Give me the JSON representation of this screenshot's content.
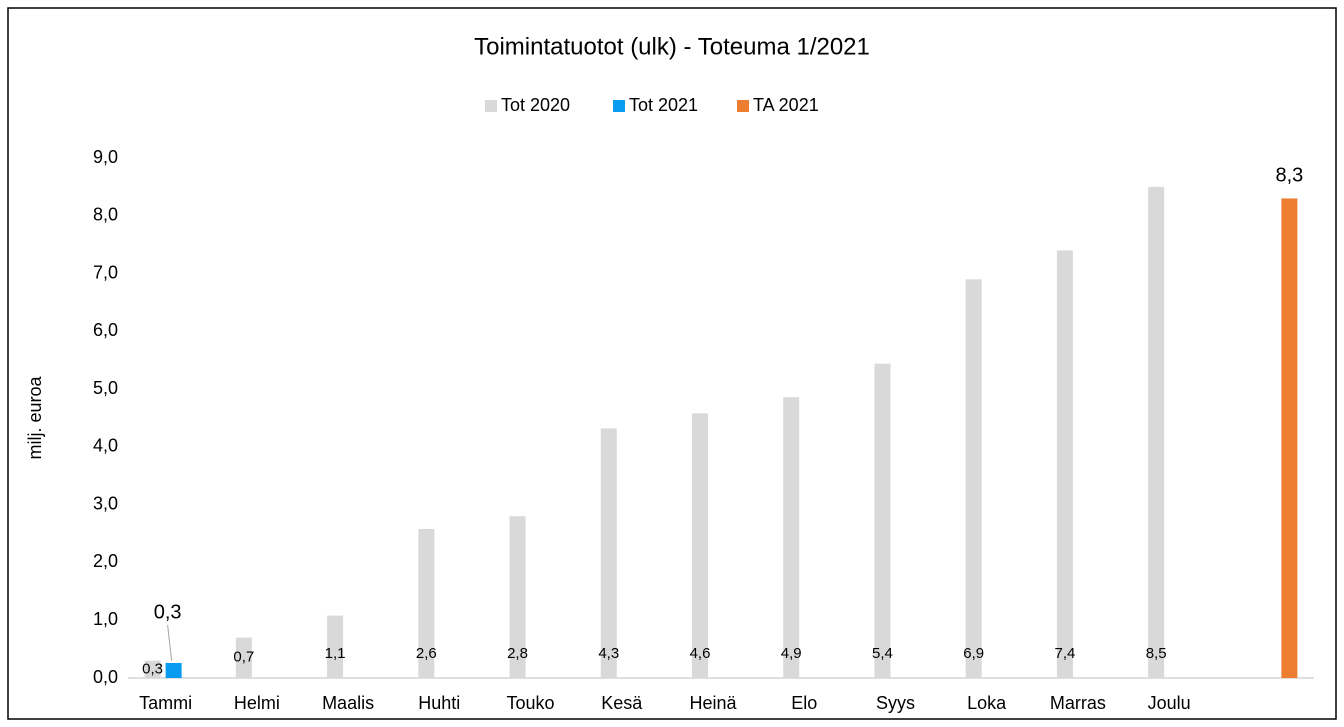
{
  "chart_data": {
    "type": "bar",
    "title": "Toimintatuotot (ulk) - Toteuma 1/2021",
    "y_axis_label": "milj. euroa",
    "categories": [
      "Tammi",
      "Helmi",
      "Maalis",
      "Huhti",
      "Touko",
      "Kesä",
      "Heinä",
      "Elo",
      "Syys",
      "Loka",
      "Marras",
      "Joulu",
      null
    ],
    "series": [
      {
        "name": "Tot 2020",
        "color": "#d9d9d9",
        "values": [
          0.3,
          0.7,
          1.08,
          2.58,
          2.8,
          4.32,
          4.58,
          4.86,
          5.44,
          6.9,
          7.4,
          8.5,
          null
        ],
        "value_labels": [
          "0,3",
          "0,7",
          "1,1",
          "2,6",
          "2,8",
          "4,3",
          "4,6",
          "4,9",
          "5,4",
          "6,9",
          "7,4",
          "8,5",
          null
        ]
      },
      {
        "name": "Tot 2021",
        "color": "#0a9cf0",
        "values": [
          0.26,
          null,
          null,
          null,
          null,
          null,
          null,
          null,
          null,
          null,
          null,
          null,
          null
        ],
        "value_labels": [
          "0,3",
          null,
          null,
          null,
          null,
          null,
          null,
          null,
          null,
          null,
          null,
          null,
          null
        ]
      },
      {
        "name": "TA 2021",
        "color": "#ed7d31",
        "values": [
          null,
          null,
          null,
          null,
          null,
          null,
          null,
          null,
          null,
          null,
          null,
          null,
          8.3
        ],
        "value_labels": [
          null,
          null,
          null,
          null,
          null,
          null,
          null,
          null,
          null,
          null,
          null,
          null,
          "8,3"
        ]
      }
    ],
    "ylim": [
      0,
      9
    ],
    "yticks": [
      {
        "value": 0,
        "label": "0,0"
      },
      {
        "value": 1,
        "label": "1,0"
      },
      {
        "value": 2,
        "label": "2,0"
      },
      {
        "value": 3,
        "label": "3,0"
      },
      {
        "value": 4,
        "label": "4,0"
      },
      {
        "value": 5,
        "label": "5,0"
      },
      {
        "value": 6,
        "label": "6,0"
      },
      {
        "value": 7,
        "label": "7,0"
      },
      {
        "value": 8,
        "label": "8,0"
      },
      {
        "value": 9,
        "label": "9,0"
      }
    ],
    "grid": false,
    "legend": "top"
  }
}
